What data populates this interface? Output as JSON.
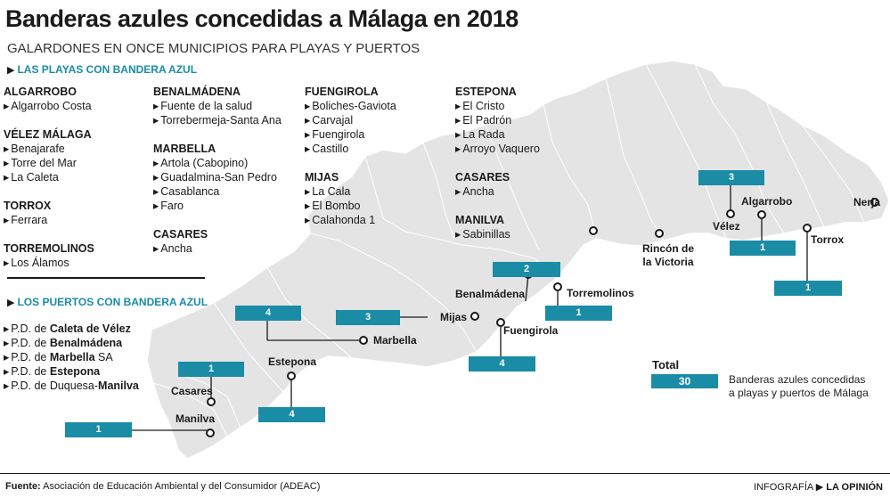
{
  "header": {
    "title": "Banderas azules concedidas a Málaga en 2018",
    "subtitle": "GALARDONES EN ONCE MUNICIPIOS PARA PLAYAS Y PUERTOS"
  },
  "beaches_section": {
    "heading": "LAS PLAYAS CON BANDERA AZUL",
    "columns": [
      [
        {
          "municipality": "ALGARROBO",
          "beaches": [
            "Algarrobo Costa"
          ]
        },
        {
          "municipality": "VÉLEZ MÁLAGA",
          "beaches": [
            "Benajarafe",
            "Torre del Mar",
            "La Caleta"
          ]
        },
        {
          "municipality": "TORROX",
          "beaches": [
            "Ferrara"
          ]
        },
        {
          "municipality": "TORREMOLINOS",
          "beaches": [
            "Los Álamos"
          ]
        }
      ],
      [
        {
          "municipality": "BENALMÁDENA",
          "beaches": [
            "Fuente de la salud",
            "Torrebermeja-Santa Ana"
          ]
        },
        {
          "municipality": "MARBELLA",
          "beaches": [
            "Artola (Cabopino)",
            "Guadalmina-San Pedro",
            "Casablanca",
            "Faro"
          ]
        },
        {
          "municipality": "CASARES",
          "beaches": [
            "Ancha"
          ]
        }
      ],
      [
        {
          "municipality": "FUENGIROLA",
          "beaches": [
            "Boliches-Gaviota",
            "Carvajal",
            "Fuengirola",
            "Castillo"
          ]
        },
        {
          "municipality": "MIJAS",
          "beaches": [
            "La Cala",
            "El Bombo",
            "Calahonda 1"
          ]
        }
      ],
      [
        {
          "municipality": "ESTEPONA",
          "beaches": [
            "El Cristo",
            "El Padrón",
            "La Rada",
            "Arroyo Vaquero"
          ]
        },
        {
          "municipality": "CASARES",
          "beaches": [
            "Ancha"
          ]
        },
        {
          "municipality": "MANILVA",
          "beaches": [
            "Sabinillas"
          ]
        }
      ]
    ]
  },
  "ports_section": {
    "heading": "LOS PUERTOS CON BANDERA AZUL",
    "ports": [
      {
        "prefix": "P.D. de ",
        "bold": "Caleta de Vélez",
        "suffix": ""
      },
      {
        "prefix": "P.D. de ",
        "bold": "Benalmádena",
        "suffix": ""
      },
      {
        "prefix": "P.D. de ",
        "bold": "Marbella",
        "suffix": " SA"
      },
      {
        "prefix": "P.D. de ",
        "bold": "Estepona",
        "suffix": ""
      },
      {
        "prefix": "P.D. de Duquesa-",
        "bold": "Manilva",
        "suffix": ""
      }
    ]
  },
  "map": {
    "places": [
      {
        "name": "Nerja",
        "count": "",
        "align": "left"
      },
      {
        "name": "Torrox",
        "count": "1",
        "align": "left"
      },
      {
        "name": "Algarrobo",
        "count": "1",
        "align": "left"
      },
      {
        "name": "Vélez",
        "count": "3",
        "align": "left"
      },
      {
        "name": "Rincón de la Victoria",
        "count": "",
        "align": "center"
      },
      {
        "name": "Torremolinos",
        "count": "1",
        "align": "left"
      },
      {
        "name": "Benalmádena",
        "count": "2",
        "align": "left"
      },
      {
        "name": "Fuengirola",
        "count": "4",
        "align": "left"
      },
      {
        "name": "Mijas",
        "count": "3",
        "align": "left"
      },
      {
        "name": "Marbella",
        "count": "4",
        "align": "left"
      },
      {
        "name": "Estepona",
        "count": "4",
        "align": "left"
      },
      {
        "name": "Casares",
        "count": "1",
        "align": "left"
      },
      {
        "name": "Manilva",
        "count": "1",
        "align": "left"
      }
    ],
    "colors": {
      "province_fill": "#e4e4e4",
      "border": "#ffffff",
      "accent": "#1a8ca6"
    }
  },
  "total": {
    "label": "Total",
    "value": "30",
    "description": "Banderas azules concedidas a playas y puertos de Málaga"
  },
  "footer": {
    "source_label": "Fuente:",
    "source_text": " Asociación de Educación Ambiental y del Consumidor (ADEAC)",
    "credit_prefix": "INFOGRAFÍA ",
    "credit_brand": "LA OPINIÓN"
  }
}
